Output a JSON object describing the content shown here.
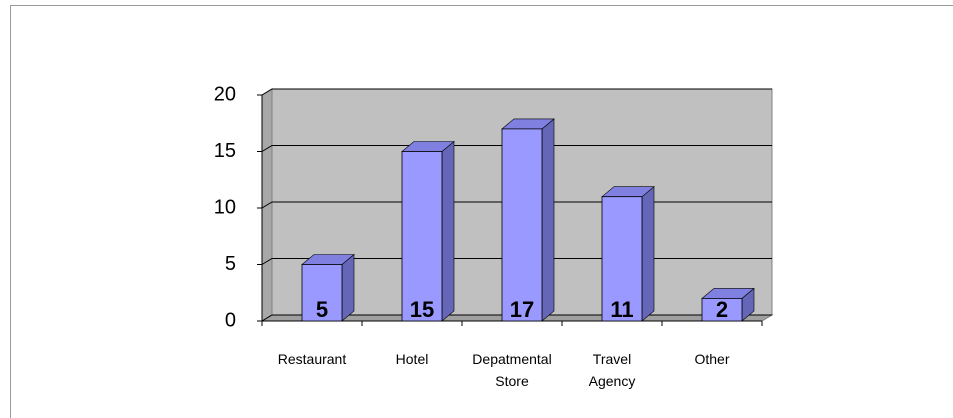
{
  "chart_data": {
    "type": "bar3d",
    "categories": [
      "Restaurant",
      "Hotel",
      "Depatmental Store",
      "Travel Agency",
      "Other"
    ],
    "values": [
      5,
      15,
      17,
      11,
      2
    ],
    "color": "#9999ff",
    "ylim": [
      0,
      20
    ],
    "yticks": [
      0,
      5,
      10,
      15,
      20
    ],
    "grid": true
  }
}
